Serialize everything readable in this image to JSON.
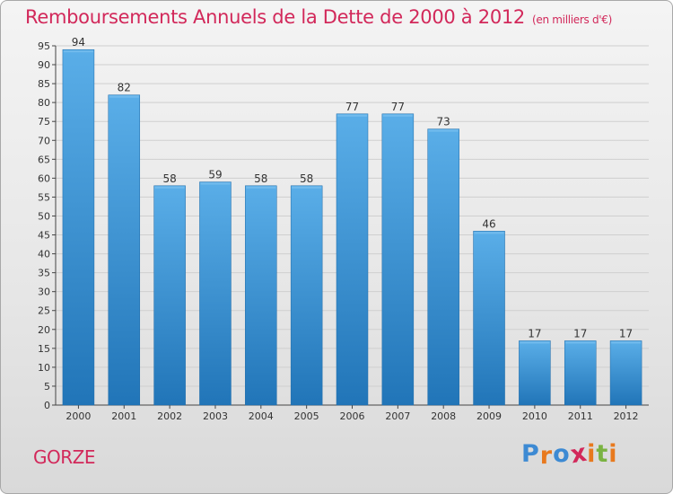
{
  "header": {
    "title": "Remboursements Annuels de la Dette de 2000 à 2012",
    "subtitle": "(en milliers d'€)"
  },
  "footer": {
    "commune": "GORZE",
    "logo": "Proxiti"
  },
  "colors": {
    "title": "#d2285a",
    "bar_top": "#5aaee8",
    "bar_bottom": "#2175b8",
    "logo_letters": [
      "#3d8ad3",
      "#e8791e",
      "#3d8ad3",
      "#d2285a",
      "#e8791e",
      "#7ab342",
      "#e8791e"
    ]
  },
  "chart_data": {
    "type": "bar",
    "categories": [
      "2000",
      "2001",
      "2002",
      "2003",
      "2004",
      "2005",
      "2006",
      "2007",
      "2008",
      "2009",
      "2010",
      "2011",
      "2012"
    ],
    "values": [
      94,
      82,
      58,
      59,
      58,
      58,
      77,
      77,
      73,
      46,
      17,
      17,
      17
    ],
    "title": "Remboursements Annuels de la Dette de 2000 à 2012",
    "xlabel": "",
    "ylabel": "",
    "ylim": [
      0,
      95
    ],
    "yticks": [
      0,
      5,
      10,
      15,
      20,
      25,
      30,
      35,
      40,
      45,
      50,
      55,
      60,
      65,
      70,
      75,
      80,
      85,
      90,
      95
    ],
    "grid": true,
    "legend": "none",
    "data_labels": true
  }
}
